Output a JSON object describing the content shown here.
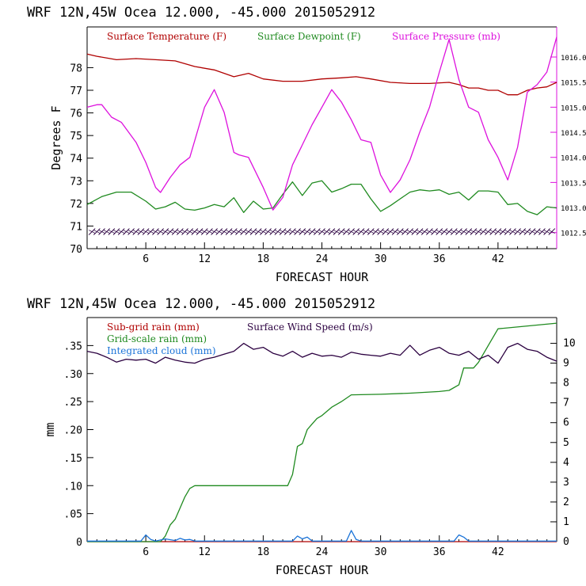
{
  "chart_data": [
    {
      "type": "line",
      "title": "WRF   12N,45W Ocea  12.000, -45.000  2015052912",
      "xlabel": "FORECAST HOUR",
      "ylabel": "Degrees F",
      "xlim": [
        0,
        48
      ],
      "ylim": [
        70,
        79.8
      ],
      "xticks": [
        6,
        12,
        18,
        24,
        30,
        36,
        42
      ],
      "yticks": [
        70,
        71,
        72,
        73,
        74,
        75,
        76,
        77,
        78
      ],
      "y2lim": [
        1012.18,
        1016.6
      ],
      "y2ticks": [
        "1012.5",
        "1013.0",
        "1013.5",
        "1014.0",
        "1014.5",
        "1015.0",
        "1015.5",
        "1016.0"
      ],
      "series": [
        {
          "name": "Surface Temperature (F)",
          "color": "#b00000",
          "axis": "left",
          "x": [
            0,
            1,
            3,
            5,
            7,
            9,
            11,
            13,
            15,
            16.5,
            18,
            20,
            22,
            24,
            26,
            27.5,
            29,
            31,
            33,
            35,
            37,
            38,
            39,
            40,
            41,
            42,
            43,
            44,
            45,
            46,
            47,
            48
          ],
          "y": [
            78.6,
            78.5,
            78.35,
            78.4,
            78.35,
            78.3,
            78.05,
            77.9,
            77.6,
            77.75,
            77.5,
            77.4,
            77.4,
            77.5,
            77.55,
            77.6,
            77.5,
            77.35,
            77.3,
            77.3,
            77.35,
            77.25,
            77.1,
            77.1,
            77.0,
            77.0,
            76.8,
            76.8,
            77.0,
            77.1,
            77.15,
            77.35
          ]
        },
        {
          "name": "Surface Dewpoint (F)",
          "color": "#1f8a1f",
          "axis": "left",
          "x": [
            0,
            1.5,
            3,
            4.5,
            6,
            7,
            8,
            9,
            10,
            11,
            12,
            13,
            14,
            15,
            16,
            17,
            18,
            19,
            20,
            21,
            22,
            23,
            24,
            25,
            26,
            27,
            28,
            29,
            30,
            31,
            32,
            33,
            34,
            35,
            36,
            37,
            38,
            39,
            40,
            41,
            42,
            43,
            44,
            45,
            46,
            47,
            48
          ],
          "y": [
            71.95,
            72.3,
            72.5,
            72.5,
            72.1,
            71.75,
            71.85,
            72.05,
            71.75,
            71.7,
            71.8,
            71.95,
            71.85,
            72.25,
            71.6,
            72.1,
            71.75,
            71.8,
            72.4,
            72.95,
            72.35,
            72.9,
            73.0,
            72.5,
            72.65,
            72.85,
            72.85,
            72.2,
            71.65,
            71.9,
            72.2,
            72.5,
            72.6,
            72.55,
            72.6,
            72.4,
            72.5,
            72.15,
            72.55,
            72.55,
            72.5,
            71.95,
            72.0,
            71.65,
            71.5,
            71.85,
            71.8
          ]
        },
        {
          "name": "Surface Pressure (mb)",
          "color": "#dd11dd",
          "axis": "right",
          "x": [
            0,
            1,
            1.5,
            2.5,
            3.5,
            5,
            6,
            7,
            7.5,
            8.5,
            9.5,
            10.5,
            12,
            13,
            14,
            15,
            15.5,
            16.5,
            18,
            19,
            20,
            21,
            22,
            23,
            24,
            25,
            26,
            27,
            28,
            29,
            30,
            31,
            32,
            33,
            34,
            35,
            36,
            37,
            38,
            39,
            40,
            41,
            42,
            43,
            44,
            45,
            46,
            47,
            48
          ],
          "y": [
            1015.0,
            1015.05,
            1015.05,
            1014.8,
            1014.7,
            1014.3,
            1013.9,
            1013.4,
            1013.3,
            1013.6,
            1013.85,
            1014.0,
            1015.0,
            1015.35,
            1014.9,
            1014.1,
            1014.05,
            1014.0,
            1013.4,
            1012.95,
            1013.2,
            1013.85,
            1014.25,
            1014.65,
            1015.0,
            1015.35,
            1015.1,
            1014.75,
            1014.35,
            1014.3,
            1013.65,
            1013.3,
            1013.55,
            1013.95,
            1014.5,
            1015.0,
            1015.7,
            1016.35,
            1015.55,
            1015.0,
            1014.9,
            1014.35,
            1014.0,
            1013.55,
            1014.2,
            1015.3,
            1015.45,
            1015.7,
            1016.4
          ]
        }
      ],
      "wind_barbs": true
    },
    {
      "type": "line",
      "title": "WRF   12N,45W Ocea  12.000, -45.000  2015052912",
      "xlabel": "FORECAST HOUR",
      "ylabel": "mm",
      "xlim": [
        0,
        48
      ],
      "ylim": [
        0,
        0.4
      ],
      "xticks": [
        6,
        12,
        18,
        24,
        30,
        36,
        42
      ],
      "yticks": [
        0,
        0.05,
        0.1,
        0.15,
        0.2,
        0.25,
        0.3,
        0.35
      ],
      "ytick_labels": [
        "0",
        ".05",
        ".10",
        ".15",
        ".20",
        ".25",
        ".30",
        ".35"
      ],
      "y2lim": [
        0,
        11.3
      ],
      "y2ticks": [
        "0",
        "1",
        "2",
        "3",
        "4",
        "5",
        "6",
        "7",
        "8",
        "9",
        "10"
      ],
      "series": [
        {
          "name": "Sub-grid rain (mm)",
          "color": "#b00000",
          "axis": "left",
          "x": [
            0,
            48
          ],
          "y": [
            0,
            0
          ]
        },
        {
          "name": "Grid-scale rain (mm)",
          "color": "#1f8a1f",
          "axis": "left",
          "x": [
            0,
            7.5,
            8,
            8.5,
            9,
            9.5,
            10,
            10.5,
            11,
            20.5,
            21,
            21.5,
            22,
            22.5,
            23,
            23.5,
            24,
            25,
            26,
            27,
            30,
            33,
            36,
            37,
            38,
            38.5,
            39.5,
            40,
            41,
            42,
            48
          ],
          "y": [
            0,
            0,
            0.01,
            0.03,
            0.04,
            0.06,
            0.08,
            0.095,
            0.1,
            0.1,
            0.12,
            0.17,
            0.175,
            0.2,
            0.21,
            0.22,
            0.225,
            0.24,
            0.25,
            0.262,
            0.263,
            0.265,
            0.268,
            0.27,
            0.28,
            0.31,
            0.31,
            0.32,
            0.35,
            0.38,
            0.39
          ]
        },
        {
          "name": "Integrated cloud (mm)",
          "color": "#1a73d8",
          "axis": "left",
          "x": [
            0,
            5.5,
            6,
            6.5,
            7,
            7.5,
            8,
            9,
            9.5,
            10,
            10.5,
            11,
            21,
            21.5,
            22,
            22.5,
            23,
            26.5,
            27,
            27.5,
            28,
            37.5,
            38,
            38.5,
            39,
            48
          ],
          "y": [
            0.001,
            0.001,
            0.012,
            0.004,
            0.001,
            0.003,
            0.005,
            0.002,
            0.006,
            0.003,
            0.004,
            0.001,
            0.001,
            0.01,
            0.005,
            0.008,
            0.001,
            0.001,
            0.02,
            0.004,
            0.001,
            0.001,
            0.012,
            0.008,
            0.001,
            0.001
          ]
        },
        {
          "name": "Surface Wind Speed (m/s)",
          "color": "#2b0040",
          "axis": "right",
          "x": [
            0,
            1,
            2,
            3,
            4,
            5,
            6,
            7,
            8,
            9,
            10,
            11,
            12,
            13,
            14,
            15,
            16,
            17,
            18,
            19,
            20,
            21,
            22,
            23,
            24,
            25,
            26,
            27,
            28,
            29,
            30,
            31,
            32,
            33,
            34,
            35,
            36,
            37,
            38,
            39,
            40,
            41,
            42,
            43,
            44,
            45,
            46,
            47,
            48
          ],
          "y": [
            9.6,
            9.5,
            9.3,
            9.05,
            9.2,
            9.15,
            9.2,
            9.0,
            9.3,
            9.15,
            9.05,
            9.0,
            9.2,
            9.3,
            9.45,
            9.6,
            10.0,
            9.7,
            9.8,
            9.5,
            9.35,
            9.6,
            9.3,
            9.5,
            9.35,
            9.4,
            9.3,
            9.55,
            9.45,
            9.4,
            9.35,
            9.5,
            9.4,
            9.9,
            9.4,
            9.65,
            9.8,
            9.5,
            9.4,
            9.6,
            9.2,
            9.4,
            9.0,
            9.8,
            10.0,
            9.7,
            9.6,
            9.3,
            9.1
          ]
        }
      ]
    }
  ]
}
